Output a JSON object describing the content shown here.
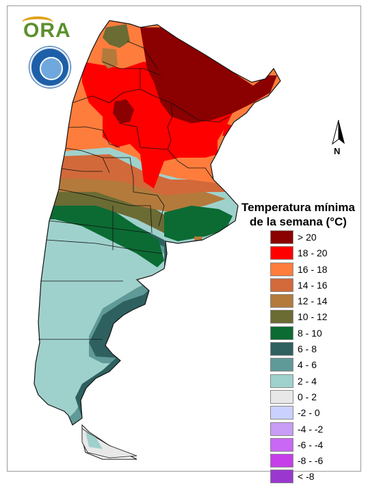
{
  "header": {
    "logo_text": "ORA"
  },
  "map": {
    "north_label": "N",
    "legend": {
      "title_line1": "Temperatura mínima",
      "title_line2": "de la semana (°C)",
      "classes": [
        {
          "label": "> 20",
          "color": "#8b0000"
        },
        {
          "label": "18 - 20",
          "color": "#ff0000"
        },
        {
          "label": "16 - 18",
          "color": "#ff7d3c"
        },
        {
          "label": "14 - 16",
          "color": "#d2693a"
        },
        {
          "label": "12 - 14",
          "color": "#b37a3c"
        },
        {
          "label": "10 - 12",
          "color": "#6b6b34"
        },
        {
          "label": "8 - 10",
          "color": "#0b6b33"
        },
        {
          "label": "6 - 8",
          "color": "#2f6060"
        },
        {
          "label": "4 - 6",
          "color": "#5f9a98"
        },
        {
          "label": "2 - 4",
          "color": "#9fd1cc"
        },
        {
          "label": "0 - 2",
          "color": "#e8e8e8"
        },
        {
          "label": "-2 - 0",
          "color": "#cbd1ff"
        },
        {
          "label": "-4 - -2",
          "color": "#c89cf4"
        },
        {
          "label": "-6 - -4",
          "color": "#c968f5"
        },
        {
          "label": "-8 - -6",
          "color": "#c53ee9"
        },
        {
          "label": "< -8",
          "color": "#9a37cf"
        }
      ]
    }
  }
}
